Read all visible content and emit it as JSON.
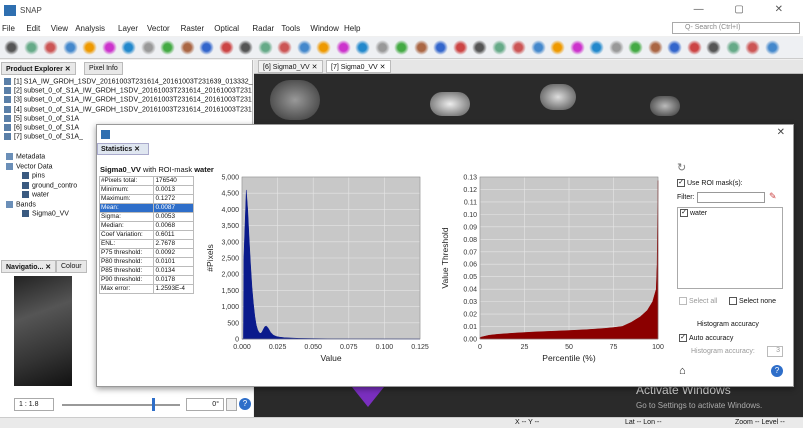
{
  "app": {
    "title": "SNAP",
    "quick_search": "Q- Search (Ctrl+I)"
  },
  "menu": [
    "File",
    "Edit",
    "View",
    "Analysis",
    "Layer",
    "Vector",
    "Raster",
    "Optical",
    "Radar",
    "Tools",
    "Window",
    "Help"
  ],
  "left_panel": {
    "tabs": [
      "Product Explorer",
      "Pixel Info"
    ],
    "products": [
      "[1] S1A_IW_GRDH_1SDV_20161003T231614_20161003T231639_013332_",
      "[2] subset_0_of_S1A_IW_GRDH_1SDV_20161003T231614_20161003T231",
      "[3] subset_0_of_S1A_IW_GRDH_1SDV_20161003T231614_20161003T231",
      "[4] subset_0_of_S1A_IW_GRDH_1SDV_20161003T231614_20161003T231",
      "[5] subset_0_of_S1A",
      "[6] subset_0_of_S1A",
      "[7] subset_0_of_S1A_"
    ],
    "tree": [
      "Metadata",
      "Vector Data",
      "pins",
      "ground_contro",
      "water",
      "Bands",
      "Sigma0_VV"
    ]
  },
  "nav_panel": {
    "tabs": [
      "Navigatio...",
      "Colour"
    ],
    "scale": "1 : 1.8",
    "rotation": "0°"
  },
  "image_tabs": [
    "[6] Sigma0_VV",
    "[7] Sigma0_VV"
  ],
  "statusbar": {
    "x": "X -- Y --",
    "lat": "Lat -- Lon --",
    "zoom": "Zoom -- Level --"
  },
  "watermark": {
    "line1": "Activate Windows",
    "line2": "Go to Settings to activate Windows."
  },
  "dialog": {
    "tab": "Statistics",
    "band": "Sigma0_VV",
    "with_text": "with ROI-mask",
    "mask": "water",
    "stats": [
      [
        "#Pixels total:",
        "176540"
      ],
      [
        "Minimum:",
        "0.0013"
      ],
      [
        "Maximum:",
        "0.1272"
      ],
      [
        "Mean:",
        "0.0087"
      ],
      [
        "Sigma:",
        "0.0053"
      ],
      [
        "Median:",
        "0.0068"
      ],
      [
        "Coef Variation:",
        "0.6011"
      ],
      [
        "ENL:",
        "2.7678"
      ],
      [
        "P75 threshold:",
        "0.0092"
      ],
      [
        "P80 threshold:",
        "0.0101"
      ],
      [
        "P85 threshold:",
        "0.0134"
      ],
      [
        "P90 threshold:",
        "0.0178"
      ],
      [
        "Max error:",
        "1.2593E-4"
      ]
    ],
    "selected_row": 3,
    "right": {
      "use_roi": "Use ROI mask(s):",
      "filter": "Filter:",
      "mask_item": "water",
      "select_all": "Select all",
      "select_none": "Select none",
      "acc_title": "Histogram accuracy",
      "auto_acc": "Auto accuracy",
      "acc_label": "Histogram accuracy:",
      "acc_value": "3"
    }
  },
  "chart_data": [
    {
      "type": "area",
      "title": "",
      "xlabel": "Value",
      "ylabel": "#Pixels",
      "xlim": [
        0,
        0.125
      ],
      "ylim": [
        0,
        5000
      ],
      "xticks": [
        "0.000",
        "0.025",
        "0.050",
        "0.075",
        "0.100",
        "0.125"
      ],
      "yticks": [
        "0",
        "500",
        "1,000",
        "1,500",
        "2,000",
        "2,500",
        "3,000",
        "3,500",
        "4,000",
        "4,500",
        "5,000"
      ],
      "x": [
        0,
        0.001,
        0.0013,
        0.003,
        0.004,
        0.005,
        0.006,
        0.007,
        0.008,
        0.009,
        0.01,
        0.011,
        0.012,
        0.013,
        0.014,
        0.015,
        0.016,
        0.017,
        0.018,
        0.019,
        0.02,
        0.022,
        0.024,
        0.026,
        0.03,
        0.04,
        0.06,
        0.1,
        0.125
      ],
      "y": [
        0,
        0,
        2500,
        4600,
        4000,
        3100,
        2300,
        1600,
        1100,
        700,
        430,
        280,
        200,
        170,
        210,
        300,
        380,
        400,
        360,
        290,
        210,
        120,
        80,
        60,
        40,
        20,
        8,
        3,
        0
      ],
      "color": "#0a1a8c"
    },
    {
      "type": "area",
      "title": "",
      "xlabel": "Percentile (%)",
      "ylabel": "Value Threshold",
      "xlim": [
        0,
        100
      ],
      "ylim": [
        0,
        0.13
      ],
      "xticks": [
        "0",
        "25",
        "50",
        "75",
        "100"
      ],
      "yticks": [
        "0.00",
        "0.01",
        "0.02",
        "0.03",
        "0.04",
        "0.05",
        "0.06",
        "0.07",
        "0.08",
        "0.09",
        "0.10",
        "0.11",
        "0.12",
        "0.13"
      ],
      "x": [
        0,
        5,
        10,
        20,
        30,
        40,
        50,
        60,
        70,
        75,
        80,
        85,
        90,
        94,
        97,
        99,
        99.5,
        100
      ],
      "y": [
        0.0013,
        0.003,
        0.0038,
        0.0048,
        0.0056,
        0.0062,
        0.0068,
        0.0075,
        0.0085,
        0.0092,
        0.0101,
        0.0134,
        0.0178,
        0.023,
        0.03,
        0.04,
        0.06,
        0.1272
      ],
      "color": "#8b0000"
    }
  ]
}
